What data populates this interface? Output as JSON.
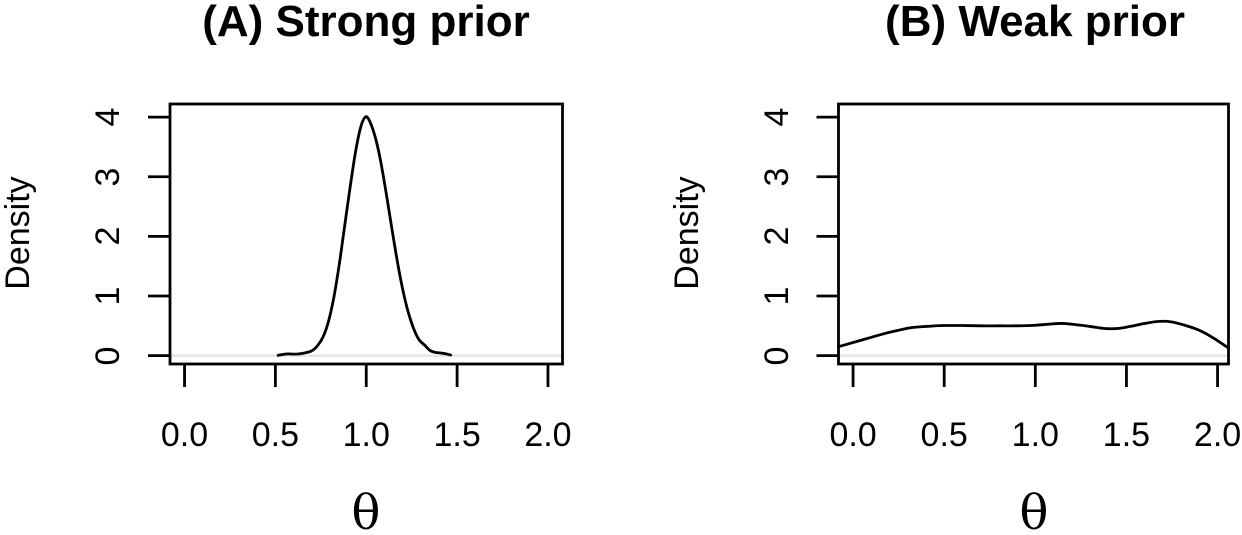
{
  "figure": {
    "background": "#ffffff",
    "text_color": "#000000",
    "curve_color": "#000000",
    "axis_color": "#000000",
    "zero_line_color": "#e4e4e4"
  },
  "chart_data": [
    {
      "panel": "A",
      "type": "line",
      "title": "(A) Strong prior",
      "xlabel": "θ",
      "ylabel": "Density",
      "x_ticks": [
        0,
        0.5,
        1,
        1.5,
        2
      ],
      "x_tick_labels": [
        "0.0",
        "0.5",
        "1.0",
        "1.5",
        "2.0"
      ],
      "y_ticks": [
        0,
        1,
        2,
        3,
        4
      ],
      "y_tick_labels": [
        "0",
        "1",
        "2",
        "3",
        "4"
      ],
      "xlim": [
        -0.08,
        2.08
      ],
      "ylim": [
        -0.14,
        4.22
      ],
      "grid": false,
      "legend": false,
      "zero_line": true,
      "curve": [
        [
          0.515,
          0.005
        ],
        [
          0.54,
          0.02
        ],
        [
          0.57,
          0.03
        ],
        [
          0.6,
          0.025
        ],
        [
          0.63,
          0.03
        ],
        [
          0.66,
          0.045
        ],
        [
          0.7,
          0.08
        ],
        [
          0.73,
          0.16
        ],
        [
          0.76,
          0.3
        ],
        [
          0.79,
          0.55
        ],
        [
          0.82,
          0.95
        ],
        [
          0.85,
          1.5
        ],
        [
          0.88,
          2.15
        ],
        [
          0.91,
          2.8
        ],
        [
          0.94,
          3.4
        ],
        [
          0.965,
          3.78
        ],
        [
          0.985,
          3.96
        ],
        [
          1.005,
          4.0
        ],
        [
          1.03,
          3.85
        ],
        [
          1.055,
          3.6
        ],
        [
          1.08,
          3.25
        ],
        [
          1.11,
          2.72
        ],
        [
          1.14,
          2.15
        ],
        [
          1.17,
          1.6
        ],
        [
          1.2,
          1.12
        ],
        [
          1.23,
          0.74
        ],
        [
          1.26,
          0.46
        ],
        [
          1.29,
          0.27
        ],
        [
          1.32,
          0.18
        ],
        [
          1.35,
          0.09
        ],
        [
          1.38,
          0.055
        ],
        [
          1.41,
          0.045
        ],
        [
          1.44,
          0.03
        ],
        [
          1.465,
          0.01
        ]
      ]
    },
    {
      "panel": "B",
      "type": "line",
      "title": "(B) Weak prior",
      "xlabel": "θ",
      "ylabel": "Density",
      "x_ticks": [
        0,
        0.5,
        1,
        1.5,
        2
      ],
      "x_tick_labels": [
        "0.0",
        "0.5",
        "1.0",
        "1.5",
        "2.0"
      ],
      "y_ticks": [
        0,
        1,
        2,
        3,
        4
      ],
      "y_tick_labels": [
        "0",
        "1",
        "2",
        "3",
        "4"
      ],
      "xlim": [
        -0.08,
        2.06
      ],
      "ylim": [
        -0.14,
        4.22
      ],
      "grid": false,
      "legend": false,
      "zero_line": true,
      "curve": [
        [
          -0.08,
          0.15
        ],
        [
          0.0,
          0.22
        ],
        [
          0.08,
          0.29
        ],
        [
          0.16,
          0.36
        ],
        [
          0.24,
          0.42
        ],
        [
          0.32,
          0.47
        ],
        [
          0.4,
          0.49
        ],
        [
          0.5,
          0.505
        ],
        [
          0.6,
          0.505
        ],
        [
          0.7,
          0.5
        ],
        [
          0.8,
          0.5
        ],
        [
          0.9,
          0.5
        ],
        [
          1.0,
          0.51
        ],
        [
          1.08,
          0.53
        ],
        [
          1.15,
          0.54
        ],
        [
          1.22,
          0.52
        ],
        [
          1.3,
          0.49
        ],
        [
          1.38,
          0.455
        ],
        [
          1.45,
          0.455
        ],
        [
          1.52,
          0.49
        ],
        [
          1.6,
          0.54
        ],
        [
          1.68,
          0.575
        ],
        [
          1.75,
          0.565
        ],
        [
          1.82,
          0.51
        ],
        [
          1.88,
          0.45
        ],
        [
          1.93,
          0.38
        ],
        [
          1.98,
          0.29
        ],
        [
          2.02,
          0.21
        ],
        [
          2.06,
          0.13
        ]
      ]
    }
  ]
}
